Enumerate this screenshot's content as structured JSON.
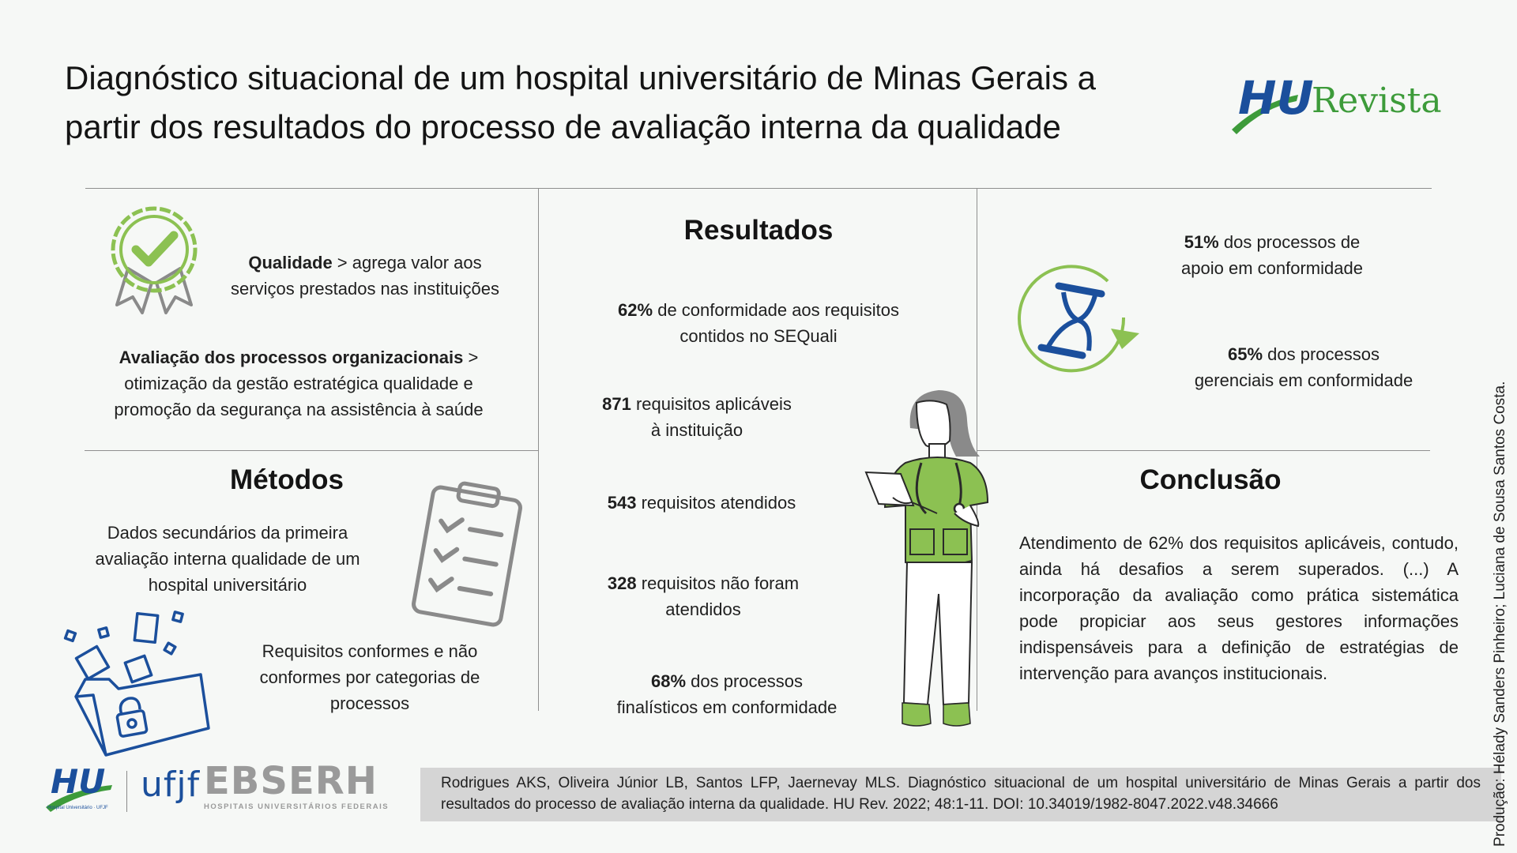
{
  "header": {
    "title_line1": "Diagnóstico situacional de um hospital universitário de Minas Gerais a",
    "title_line2": "partir dos resultados do processo de avaliação interna da qualidade",
    "logo_hu": "HU",
    "logo_revista": "Revista"
  },
  "intro": {
    "qualidade_bold": "Qualidade",
    "qualidade_rest": " > agrega valor aos",
    "qualidade_line2": "serviços prestados nas instituições",
    "avaliacao_bold": "Avaliação dos processos organizacionais",
    "avaliacao_rest": " >",
    "avaliacao_line2": "otimização da gestão estratégica qualidade e",
    "avaliacao_line3": "promoção da segurança na assistência à saúde"
  },
  "metodos": {
    "title": "Métodos",
    "item1_line1": "Dados secundários da primeira",
    "item1_line2": "avaliação interna qualidade de um",
    "item1_line3": "hospital universitário",
    "item2_line1": "Requisitos conformes e não",
    "item2_line2": "conformes por categorias de",
    "item2_line3": "processos"
  },
  "resultados": {
    "title": "Resultados",
    "r1_bold": "62%",
    "r1_rest": " de conformidade aos requisitos",
    "r1_line2": "contidos no SEQuali",
    "r2_bold": "871",
    "r2_rest": " requisitos aplicáveis",
    "r2_line2": "à instituição",
    "r3_bold": "543",
    "r3_rest": " requisitos atendidos",
    "r4_bold": "328",
    "r4_rest": " requisitos não foram",
    "r4_line2": "atendidos",
    "r5_bold": "68%",
    "r5_rest": " dos processos",
    "r5_line2": "finalísticos em conformidade"
  },
  "right_stats": {
    "s1_bold": "51%",
    "s1_rest": " dos processos de",
    "s1_line2": "apoio em conformidade",
    "s2_bold": "65%",
    "s2_rest": " dos processos",
    "s2_line2": "gerenciais em conformidade"
  },
  "conclusao": {
    "title": "Conclusão",
    "text": "Atendimento de 62% dos requisitos aplicáveis, contudo, ainda há desafios a serem superados. (...) A incorporação da avaliação como prática sistemática pode propiciar aos seus gestores informações indispensáveis para a definição de estratégias de intervenção para avanços institucionais."
  },
  "footer": {
    "hu_logo": "HU",
    "hu_logo_sub": "Hospital Universitário · UFJF",
    "ufjf_logo": "ufjf",
    "ebserh_logo": "EBSERH",
    "ebserh_sub": "HOSPITAIS UNIVERSITÁRIOS FEDERAIS",
    "citation": "Rodrigues AKS, Oliveira Júnior LB, Santos LFP, Jaernevay MLS. Diagnóstico situacional de um hospital universitário de Minas Gerais a partir dos resultados do processo de avaliação interna da qualidade. HU Rev. 2022; 48:1-11. DOI: 10.34019/1982-8047.2022.v48.34666",
    "credit": "Produção: Hélady Sanders Pinheiro; Luciana de Sousa Santos Costa."
  },
  "colors": {
    "green": "#8cc152",
    "blue": "#1b4f9c",
    "gray": "#8f8f8f"
  }
}
